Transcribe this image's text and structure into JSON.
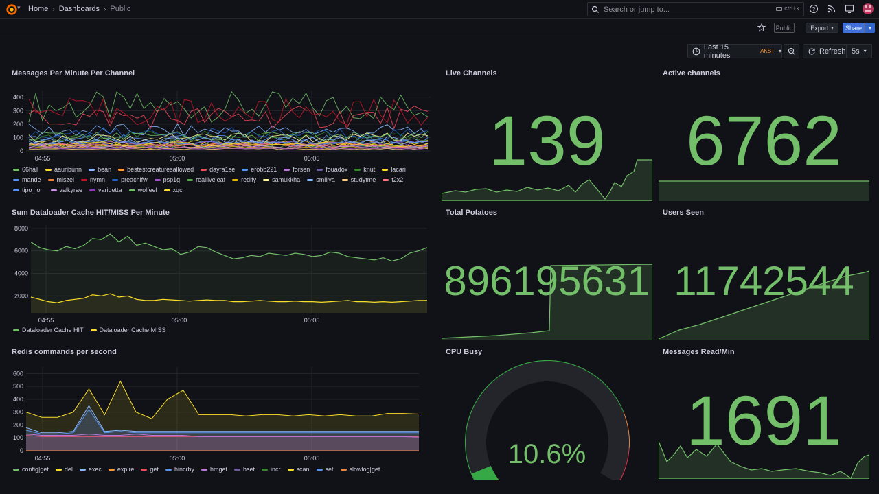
{
  "breadcrumb": [
    "Home",
    "Dashboards",
    "Public"
  ],
  "search": {
    "placeholder": "Search or jump to...",
    "shortcut": "ctrl+k"
  },
  "toolbar": {
    "public_tag": "Public",
    "export_label": "Export",
    "share_label": "Share"
  },
  "time": {
    "range": "Last 15 minutes",
    "tz": "AKST",
    "refresh": "Refresh",
    "interval": "5s"
  },
  "colors": {
    "green": "#73bf69",
    "yellow": "#fade2a",
    "bg": "#111217"
  },
  "panels": {
    "messages": {
      "title": "Messages Per Minute Per Channel"
    },
    "live": {
      "title": "Live Channels",
      "value": "139"
    },
    "active": {
      "title": "Active channels",
      "value": "6762"
    },
    "dataloader": {
      "title": "Sum Dataloader Cache HIT/MISS Per Minute"
    },
    "potatoes": {
      "title": "Total Potatoes",
      "value": "896195631"
    },
    "users": {
      "title": "Users Seen",
      "value": "11742544"
    },
    "redis": {
      "title": "Redis commands per second"
    },
    "cpu": {
      "title": "CPU Busy",
      "value": "10.6%",
      "percent": 10.6
    },
    "read": {
      "title": "Messages Read/Min",
      "value": "1691"
    }
  },
  "chart_data": [
    {
      "type": "line",
      "title": "Messages Per Minute Per Channel",
      "x_ticks": [
        "04:55",
        "05:00",
        "05:05"
      ],
      "y_ticks": [
        0,
        100,
        200,
        300,
        400
      ],
      "ylim": [
        0,
        450
      ],
      "series": [
        {
          "name": "66hall",
          "color": "#73bf69"
        },
        {
          "name": "aauribunn",
          "color": "#fade2a"
        },
        {
          "name": "bean",
          "color": "#8ab8ff"
        },
        {
          "name": "bestestcreaturesallowed",
          "color": "#ff9830"
        },
        {
          "name": "dayra1se",
          "color": "#f2495c"
        },
        {
          "name": "erobb221",
          "color": "#5794f2"
        },
        {
          "name": "forsen",
          "color": "#b877d9"
        },
        {
          "name": "fouadox",
          "color": "#705da0"
        },
        {
          "name": "knut",
          "color": "#37872d"
        },
        {
          "name": "lacari",
          "color": "#fade2a"
        },
        {
          "name": "mande",
          "color": "#5794f2"
        },
        {
          "name": "miszel",
          "color": "#ef843c"
        },
        {
          "name": "nymn",
          "color": "#c4162a"
        },
        {
          "name": "preachlfw",
          "color": "#1f60c4"
        },
        {
          "name": "psp1g",
          "color": "#a352cc"
        },
        {
          "name": "realliveleaf",
          "color": "#56a64b"
        },
        {
          "name": "redify",
          "color": "#e0b400"
        },
        {
          "name": "samukkha",
          "color": "#fff899"
        },
        {
          "name": "smillya",
          "color": "#8ab8ff"
        },
        {
          "name": "studytme",
          "color": "#ffcb7d"
        },
        {
          "name": "t2x2",
          "color": "#ff7383"
        },
        {
          "name": "tipo_lon",
          "color": "#5794f2"
        },
        {
          "name": "valkyrae",
          "color": "#ca95e5"
        },
        {
          "name": "varidetta",
          "color": "#8f3bb8"
        },
        {
          "name": "wolfeel",
          "color": "#73bf69"
        },
        {
          "name": "xqc",
          "color": "#fade2a"
        }
      ]
    },
    {
      "type": "area",
      "title": "Sum Dataloader Cache HIT/MISS Per Minute",
      "x_ticks": [
        "04:55",
        "05:00",
        "05:05"
      ],
      "y_ticks": [
        2000,
        4000,
        6000,
        8000
      ],
      "ylim": [
        500,
        8300
      ],
      "series": [
        {
          "name": "Dataloader Cache HIT",
          "color": "#73bf69",
          "values": [
            6800,
            6300,
            6100,
            6000,
            6400,
            6200,
            6500,
            7100,
            7000,
            7500,
            6800,
            7300,
            6500,
            6700,
            6400,
            6100,
            6200,
            5700,
            5900,
            6400,
            6300,
            5900,
            5600,
            5300,
            5400,
            5600,
            5500,
            5800,
            5700,
            5600,
            5800,
            5700,
            5500,
            5600,
            5900,
            5800,
            5500,
            5400,
            5300,
            5200,
            5400,
            5100,
            5300,
            5800,
            6000,
            6300
          ]
        },
        {
          "name": "Dataloader Cache MISS",
          "color": "#fade2a",
          "values": [
            1900,
            1700,
            1500,
            1400,
            1600,
            1700,
            1800,
            2100,
            2000,
            2200,
            1900,
            2000,
            1700,
            1600,
            1600,
            1700,
            1650,
            1600,
            1550,
            1600,
            1650,
            1600,
            1600,
            1500,
            1500,
            1550,
            1600,
            1550,
            1500,
            1500,
            1550,
            1500,
            1500,
            1450,
            1500,
            1550,
            1600,
            1500,
            1500,
            1450,
            1500,
            1450,
            1500,
            1550,
            1600,
            1600
          ]
        }
      ]
    },
    {
      "type": "area",
      "title": "Redis commands per second",
      "x_ticks": [
        "04:55",
        "05:00",
        "05:05"
      ],
      "y_ticks": [
        0,
        100,
        200,
        300,
        400,
        500,
        600
      ],
      "ylim": [
        0,
        650
      ],
      "series": [
        {
          "name": "config|get",
          "color": "#73bf69",
          "values": [
            0,
            0,
            0,
            0,
            0,
            0,
            0,
            0,
            0,
            0,
            0,
            0,
            0,
            0,
            0,
            0,
            0,
            0,
            0,
            0,
            0,
            0,
            0,
            0,
            0,
            0
          ]
        },
        {
          "name": "del",
          "color": "#fade2a",
          "values": [
            300,
            260,
            260,
            300,
            480,
            280,
            540,
            300,
            250,
            400,
            470,
            280,
            280,
            280,
            270,
            280,
            280,
            270,
            280,
            270,
            280,
            270,
            270,
            290,
            290,
            285
          ]
        },
        {
          "name": "exec",
          "color": "#8ab8ff",
          "values": [
            180,
            140,
            140,
            150,
            350,
            150,
            160,
            150,
            150,
            150,
            150,
            150,
            150,
            150,
            150,
            150,
            150,
            150,
            150,
            150,
            150,
            150,
            150,
            150,
            150,
            150
          ]
        },
        {
          "name": "expire",
          "color": "#ff9830",
          "values": [
            0,
            0,
            0,
            0,
            0,
            0,
            0,
            0,
            0,
            0,
            0,
            0,
            0,
            0,
            0,
            0,
            0,
            0,
            0,
            0,
            0,
            0,
            0,
            0,
            0,
            0
          ]
        },
        {
          "name": "get",
          "color": "#f2495c",
          "values": [
            120,
            110,
            110,
            110,
            110,
            110,
            110,
            110,
            110,
            110,
            110,
            110,
            110,
            110,
            110,
            110,
            110,
            110,
            110,
            110,
            110,
            110,
            110,
            110,
            110,
            110
          ]
        },
        {
          "name": "hincrby",
          "color": "#5794f2",
          "values": [
            160,
            130,
            130,
            140,
            320,
            140,
            150,
            140,
            140,
            140,
            140,
            140,
            140,
            140,
            140,
            140,
            140,
            140,
            140,
            140,
            140,
            140,
            140,
            140,
            140,
            140
          ]
        },
        {
          "name": "hmget",
          "color": "#b877d9",
          "values": [
            130,
            120,
            120,
            120,
            130,
            120,
            120,
            130,
            120,
            120,
            120,
            110,
            110,
            110,
            110,
            110,
            110,
            110,
            110,
            110,
            110,
            110,
            110,
            110,
            110,
            105
          ]
        },
        {
          "name": "hset",
          "color": "#705da0",
          "values": [
            0,
            0,
            0,
            0,
            0,
            0,
            0,
            0,
            0,
            0,
            0,
            0,
            0,
            0,
            0,
            0,
            0,
            0,
            0,
            0,
            0,
            0,
            0,
            0,
            0,
            0
          ]
        },
        {
          "name": "incr",
          "color": "#37872d",
          "values": [
            0,
            0,
            0,
            0,
            0,
            0,
            0,
            0,
            0,
            0,
            0,
            0,
            0,
            0,
            0,
            0,
            0,
            0,
            0,
            0,
            0,
            0,
            0,
            0,
            0,
            0
          ]
        },
        {
          "name": "scan",
          "color": "#fade2a",
          "values": [
            0,
            0,
            0,
            0,
            0,
            0,
            0,
            0,
            0,
            0,
            0,
            0,
            0,
            0,
            0,
            0,
            0,
            0,
            0,
            0,
            0,
            0,
            0,
            0,
            0,
            0
          ]
        },
        {
          "name": "set",
          "color": "#5794f2",
          "values": [
            0,
            0,
            0,
            0,
            0,
            0,
            0,
            0,
            0,
            0,
            0,
            0,
            0,
            0,
            0,
            0,
            0,
            0,
            0,
            0,
            0,
            0,
            0,
            0,
            0,
            0
          ]
        },
        {
          "name": "slowlog|get",
          "color": "#ef843c",
          "values": [
            0,
            0,
            0,
            0,
            0,
            0,
            0,
            0,
            0,
            0,
            0,
            0,
            0,
            0,
            0,
            0,
            0,
            0,
            0,
            0,
            0,
            0,
            0,
            0,
            0,
            0
          ]
        }
      ]
    }
  ]
}
